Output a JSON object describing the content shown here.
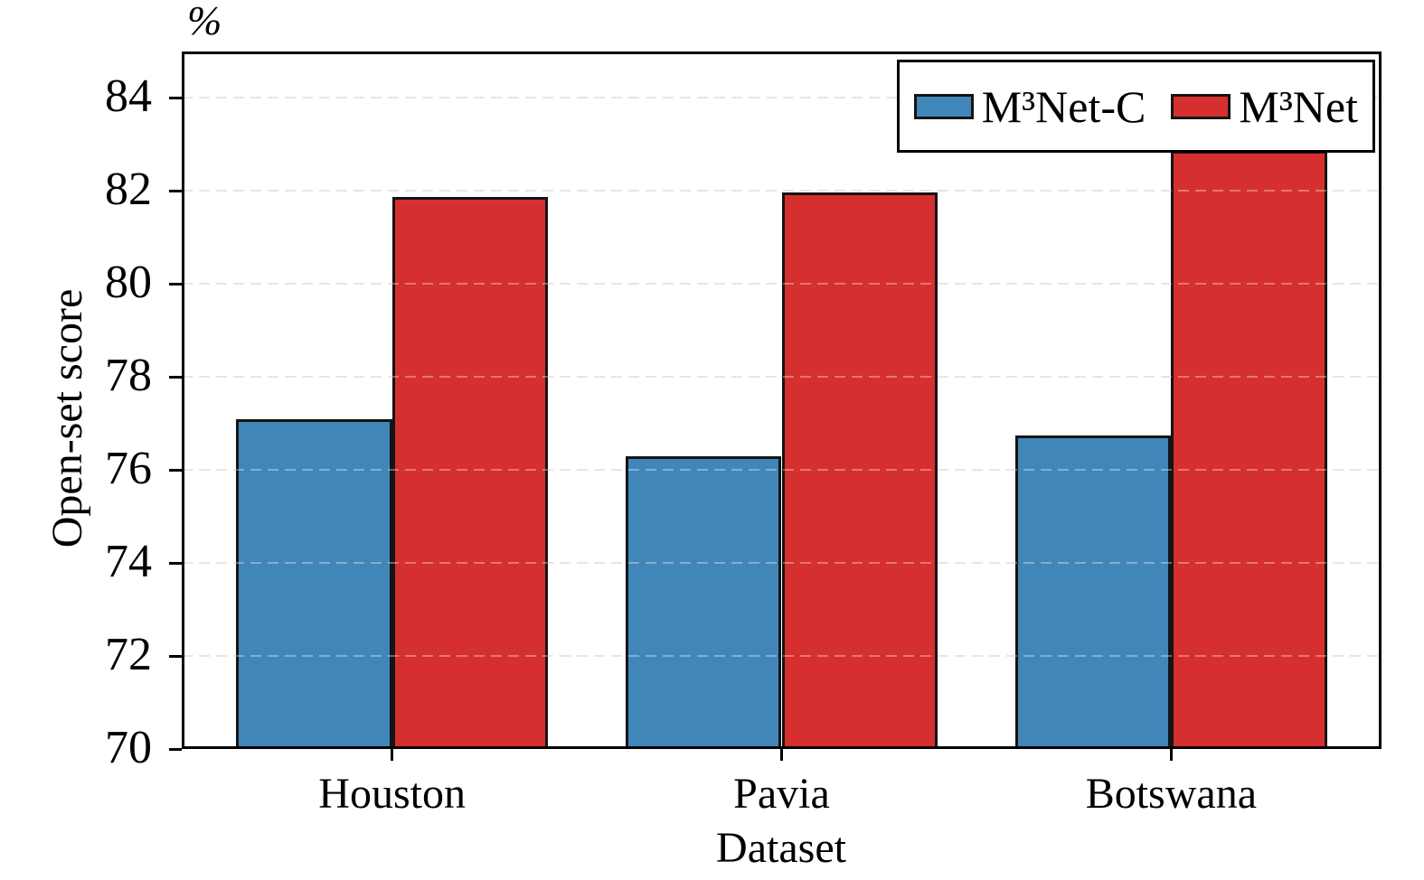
{
  "chart_data": {
    "type": "bar",
    "title": "%",
    "xlabel": "Dataset",
    "ylabel": "Open-set score",
    "categories": [
      "Houston",
      "Pavia",
      "Botswana"
    ],
    "series": [
      {
        "name": "M³Net-C",
        "color": "#4186B8",
        "values": [
          77.1,
          76.3,
          76.75
        ]
      },
      {
        "name": "M³Net",
        "color": "#D62F2F",
        "values": [
          81.88,
          81.97,
          82.87
        ]
      }
    ],
    "ylim": [
      70,
      85
    ],
    "yticks": [
      70,
      72,
      74,
      76,
      78,
      80,
      82,
      84
    ],
    "xlim": [
      -0.54,
      2.54
    ],
    "bar_width": 0.4,
    "bar_edge_color": "#141414",
    "grid": "horizontal-dashed",
    "grid_color": "#d9d9d9",
    "legend_position": "upper-right",
    "axis_color": "#000000"
  }
}
